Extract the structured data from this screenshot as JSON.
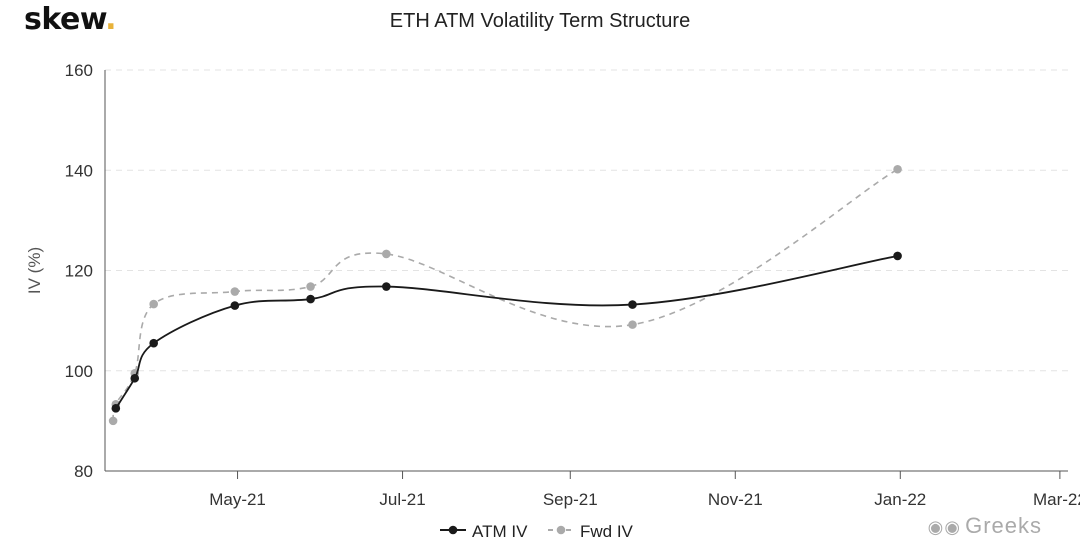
{
  "brand": {
    "logo_text": "skew",
    "logo_dot": ".",
    "dot_color": "#e8b23a"
  },
  "chart_data": {
    "type": "line",
    "title": "ETH ATM Volatility Term Structure",
    "ylabel": "IV (%)",
    "xlabel": "",
    "ylim": [
      80,
      160
    ],
    "yticks": [
      80,
      100,
      120,
      140,
      160
    ],
    "x_range": [
      "2021-03-13",
      "2022-03-04"
    ],
    "xticks": [
      {
        "label": "May-21",
        "date": "2021-05-01"
      },
      {
        "label": "Jul-21",
        "date": "2021-07-01"
      },
      {
        "label": "Sep-21",
        "date": "2021-09-01"
      },
      {
        "label": "Nov-21",
        "date": "2021-11-01"
      },
      {
        "label": "Jan-22",
        "date": "2022-01-01"
      },
      {
        "label": "Mar-22",
        "date": "2022-03-01"
      }
    ],
    "grid": "horizontal-dashed",
    "legend_position": "bottom-center",
    "series": [
      {
        "name": "ATM IV",
        "color": "#1a1a1a",
        "dash": false,
        "points": [
          {
            "x": "2021-03-17",
            "y": 92.5
          },
          {
            "x": "2021-03-24",
            "y": 98.5
          },
          {
            "x": "2021-03-31",
            "y": 105.5
          },
          {
            "x": "2021-04-30",
            "y": 113.0
          },
          {
            "x": "2021-05-28",
            "y": 114.3
          },
          {
            "x": "2021-06-25",
            "y": 116.8
          },
          {
            "x": "2021-09-24",
            "y": 113.2
          },
          {
            "x": "2021-12-31",
            "y": 122.9
          }
        ]
      },
      {
        "name": "Fwd IV",
        "color": "#aaaaaa",
        "dash": true,
        "points": [
          {
            "x": "2021-03-16",
            "y": 90.0
          },
          {
            "x": "2021-03-17",
            "y": 93.3
          },
          {
            "x": "2021-03-24",
            "y": 99.5
          },
          {
            "x": "2021-03-31",
            "y": 113.3
          },
          {
            "x": "2021-04-30",
            "y": 115.8
          },
          {
            "x": "2021-05-28",
            "y": 116.8
          },
          {
            "x": "2021-06-25",
            "y": 123.3
          },
          {
            "x": "2021-09-24",
            "y": 109.2
          },
          {
            "x": "2021-12-31",
            "y": 140.2
          }
        ]
      }
    ]
  },
  "watermark": {
    "icon": "wechat-icon",
    "text": "Greeks"
  }
}
